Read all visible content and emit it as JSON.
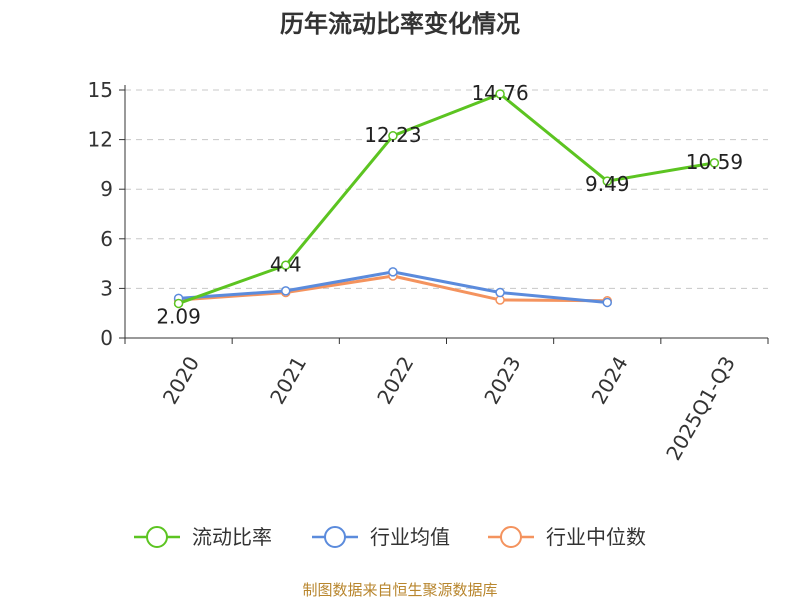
{
  "chart_data": {
    "type": "line",
    "title": "历年流动比率变化情况",
    "categories": [
      "2020",
      "2021",
      "2022",
      "2023",
      "2024",
      "2025Q1-Q3"
    ],
    "ylim": [
      0,
      15
    ],
    "yticks": [
      "0",
      "3",
      "6",
      "9",
      "12",
      "15"
    ],
    "grid": true,
    "legend_position": "bottom",
    "series": [
      {
        "name": "流动比率",
        "color": "#5cc421",
        "values": [
          2.09,
          4.4,
          12.23,
          14.76,
          9.49,
          10.59
        ],
        "labels": [
          "2.09",
          "4.4",
          "12.23",
          "14.76",
          "9.49",
          "10.59"
        ]
      },
      {
        "name": "行业均值",
        "color": "#5b8bdc",
        "values": [
          2.4,
          2.85,
          4.0,
          2.75,
          2.15,
          null
        ]
      },
      {
        "name": "行业中位数",
        "color": "#f4935e",
        "values": [
          2.3,
          2.75,
          3.75,
          2.3,
          2.25,
          null
        ]
      }
    ]
  },
  "footer": "制图数据来自恒生聚源数据库"
}
